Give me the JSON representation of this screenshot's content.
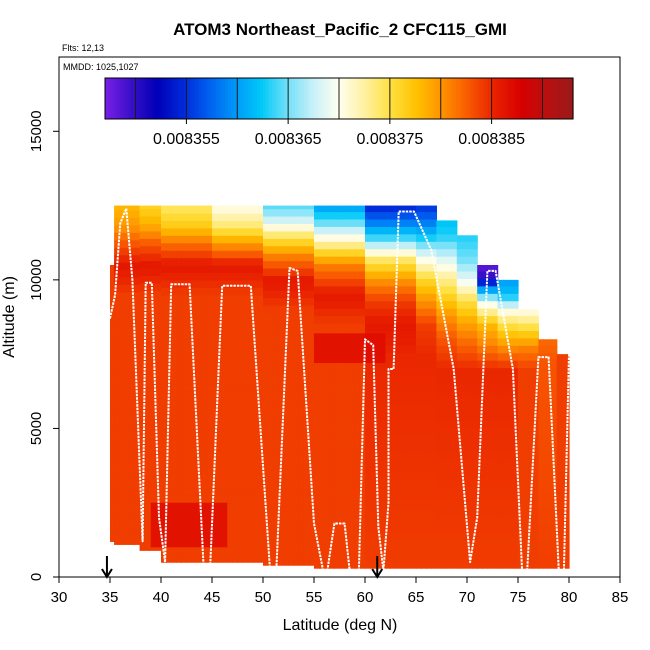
{
  "chart_data": {
    "type": "heatmap",
    "title": "ATOM3 Northeast_Pacific_2 CFC115_GMI",
    "flights_label": "Flts: 12,13",
    "dates_label": "MMDD: 1025,1027",
    "xlabel": "Latitude (deg N)",
    "ylabel": "Altitude (m)",
    "xlim": [
      30,
      85
    ],
    "ylim": [
      0,
      17500
    ],
    "x_ticks": [
      30,
      35,
      40,
      45,
      50,
      55,
      60,
      65,
      70,
      75,
      80,
      85
    ],
    "x_tick_labels": [
      "30",
      "35",
      "40",
      "45",
      "50",
      "55",
      "60",
      "65",
      "70",
      "75",
      "80",
      "85"
    ],
    "y_ticks": [
      0,
      5000,
      10000,
      15000
    ],
    "y_tick_labels": [
      "0",
      "5000",
      "10000",
      "15000"
    ],
    "colorbar": {
      "range": [
        0.008347,
        0.008393
      ],
      "ticks": [
        0.008355,
        0.008365,
        0.008375,
        0.008385
      ],
      "tick_labels": [
        "0.008355",
        "0.008365",
        "0.008375",
        "0.008385"
      ],
      "colors": [
        "#7a1fe6",
        "#3a10c8",
        "#0000b8",
        "#0028d8",
        "#0060f0",
        "#0098f8",
        "#00c8f8",
        "#70e0f8",
        "#c8f0f8",
        "#fffff0",
        "#fff0a0",
        "#ffe040",
        "#ffc000",
        "#ff9000",
        "#f85800",
        "#e82000",
        "#d80000",
        "#b81010",
        "#9a1a1a"
      ]
    },
    "arrows_at_latitude": [
      34.7,
      61.2
    ],
    "columns": [
      {
        "lat_start": 35.0,
        "lat_end": 35.4,
        "alt_min": 1200,
        "alt_max": 10500,
        "profile": [
          [
            0,
            0.008384
          ],
          [
            10500,
            0.008384
          ]
        ]
      },
      {
        "lat_start": 35.4,
        "lat_end": 37.9,
        "alt_min": 1100,
        "alt_max": 12500,
        "profile": [
          [
            0,
            0.008384
          ],
          [
            9500,
            0.008384
          ],
          [
            10500,
            0.008386
          ],
          [
            11200,
            0.008383
          ],
          [
            11800,
            0.00838
          ],
          [
            12500,
            0.008378
          ]
        ]
      },
      {
        "lat_start": 37.9,
        "lat_end": 40.0,
        "alt_min": 900,
        "alt_max": 12500,
        "profile": [
          [
            0,
            0.008384
          ],
          [
            9500,
            0.008384
          ],
          [
            10500,
            0.008386
          ],
          [
            11200,
            0.008383
          ],
          [
            11800,
            0.008379
          ],
          [
            12500,
            0.008376
          ]
        ]
      },
      {
        "lat_start": 40.0,
        "lat_end": 45.0,
        "alt_min": 500,
        "alt_max": 12500,
        "profile": [
          [
            0,
            0.008384
          ],
          [
            9500,
            0.008384
          ],
          [
            10500,
            0.008386
          ],
          [
            11200,
            0.008382
          ],
          [
            11800,
            0.008377
          ],
          [
            12500,
            0.008374
          ]
        ]
      },
      {
        "lat_start": 45.0,
        "lat_end": 50.0,
        "alt_min": 500,
        "alt_max": 12500,
        "profile": [
          [
            0,
            0.008384
          ],
          [
            9500,
            0.008384
          ],
          [
            10500,
            0.008386
          ],
          [
            11200,
            0.00838
          ],
          [
            11800,
            0.008374
          ],
          [
            12500,
            0.00837
          ]
        ]
      },
      {
        "lat_start": 50.0,
        "lat_end": 55.0,
        "alt_min": 400,
        "alt_max": 12500,
        "profile": [
          [
            0,
            0.008384
          ],
          [
            9000,
            0.008384
          ],
          [
            10000,
            0.008386
          ],
          [
            10800,
            0.008381
          ],
          [
            11500,
            0.008374
          ],
          [
            12000,
            0.008368
          ],
          [
            12500,
            0.008364
          ]
        ]
      },
      {
        "lat_start": 55.0,
        "lat_end": 60.0,
        "alt_min": 300,
        "alt_max": 12500,
        "profile": [
          [
            0,
            0.008384
          ],
          [
            8500,
            0.008384
          ],
          [
            9500,
            0.008386
          ],
          [
            10500,
            0.008381
          ],
          [
            11200,
            0.008373
          ],
          [
            11900,
            0.008365
          ],
          [
            12500,
            0.00836
          ]
        ]
      },
      {
        "lat_start": 60.0,
        "lat_end": 65.0,
        "alt_min": 300,
        "alt_max": 12500,
        "profile": [
          [
            0,
            0.008384
          ],
          [
            7500,
            0.008385
          ],
          [
            8500,
            0.008386
          ],
          [
            9300,
            0.008384
          ],
          [
            10000,
            0.00838
          ],
          [
            10700,
            0.008374
          ],
          [
            11400,
            0.008364
          ],
          [
            12000,
            0.008358
          ],
          [
            12500,
            0.008354
          ]
        ]
      },
      {
        "lat_start": 65.0,
        "lat_end": 67.0,
        "alt_min": 300,
        "alt_max": 12500,
        "profile": [
          [
            0,
            0.008384
          ],
          [
            7500,
            0.008385
          ],
          [
            8500,
            0.008384
          ],
          [
            9300,
            0.00838
          ],
          [
            10000,
            0.008376
          ],
          [
            10700,
            0.00837
          ],
          [
            11400,
            0.008363
          ],
          [
            12000,
            0.008358
          ],
          [
            12500,
            0.008355
          ]
        ]
      },
      {
        "lat_start": 67.0,
        "lat_end": 69.0,
        "alt_min": 300,
        "alt_max": 12000,
        "profile": [
          [
            0,
            0.008384
          ],
          [
            7000,
            0.008385
          ],
          [
            8000,
            0.008383
          ],
          [
            8800,
            0.00838
          ],
          [
            9500,
            0.008376
          ],
          [
            10200,
            0.008372
          ],
          [
            10900,
            0.008367
          ],
          [
            11500,
            0.008363
          ],
          [
            12000,
            0.008362
          ]
        ]
      },
      {
        "lat_start": 69.0,
        "lat_end": 71.0,
        "alt_min": 300,
        "alt_max": 11500,
        "profile": [
          [
            0,
            0.008384
          ],
          [
            7000,
            0.008385
          ],
          [
            7900,
            0.008382
          ],
          [
            8600,
            0.008379
          ],
          [
            9300,
            0.008375
          ],
          [
            10000,
            0.008369
          ],
          [
            10700,
            0.008365
          ],
          [
            11500,
            0.008363
          ]
        ]
      },
      {
        "lat_start": 71.0,
        "lat_end": 73.0,
        "alt_min": 300,
        "alt_max": 10500,
        "profile": [
          [
            0,
            0.008384
          ],
          [
            7000,
            0.008385
          ],
          [
            7800,
            0.008381
          ],
          [
            8500,
            0.008378
          ],
          [
            9200,
            0.00837
          ],
          [
            9700,
            0.00836
          ],
          [
            10100,
            0.00835
          ],
          [
            10500,
            0.008348
          ]
        ]
      },
      {
        "lat_start": 73.0,
        "lat_end": 75.0,
        "alt_min": 300,
        "alt_max": 10000,
        "profile": [
          [
            0,
            0.008384
          ],
          [
            7000,
            0.008385
          ],
          [
            7800,
            0.00838
          ],
          [
            8500,
            0.008375
          ],
          [
            9000,
            0.00837
          ],
          [
            9500,
            0.008362
          ],
          [
            10000,
            0.00836
          ]
        ]
      },
      {
        "lat_start": 75.0,
        "lat_end": 77.0,
        "alt_min": 300,
        "alt_max": 9000,
        "profile": [
          [
            0,
            0.008384
          ],
          [
            7000,
            0.008384
          ],
          [
            7700,
            0.008381
          ],
          [
            8300,
            0.008376
          ],
          [
            9000,
            0.00837
          ]
        ]
      },
      {
        "lat_start": 77.0,
        "lat_end": 78.8,
        "alt_min": 300,
        "alt_max": 8000,
        "profile": [
          [
            0,
            0.008384
          ],
          [
            7200,
            0.008383
          ],
          [
            8000,
            0.008382
          ]
        ]
      },
      {
        "lat_start": 78.8,
        "lat_end": 80.0,
        "alt_min": 300,
        "alt_max": 7500,
        "profile": [
          [
            0,
            0.008384
          ],
          [
            7500,
            0.008384
          ]
        ]
      }
    ],
    "patches": [
      {
        "lat_start": 39.0,
        "lat_end": 46.5,
        "alt_min": 1000,
        "alt_max": 2500,
        "value": 0.008387
      },
      {
        "lat_start": 55.0,
        "lat_end": 62.0,
        "alt_min": 7200,
        "alt_max": 8200,
        "value": 0.008387
      }
    ],
    "flight_track": [
      [
        35.0,
        8700
      ],
      [
        35.5,
        9500
      ],
      [
        36.0,
        11900
      ],
      [
        36.6,
        12400
      ],
      [
        37.2,
        10000
      ],
      [
        38.2,
        1200
      ],
      [
        38.5,
        9900
      ],
      [
        39.1,
        9900
      ],
      [
        39.8,
        2000
      ],
      [
        40.4,
        500
      ],
      [
        41.0,
        9850
      ],
      [
        42.8,
        9850
      ],
      [
        44.2,
        200
      ],
      [
        44.8,
        200
      ],
      [
        46.0,
        9800
      ],
      [
        48.8,
        9800
      ],
      [
        50.7,
        200
      ],
      [
        51.3,
        200
      ],
      [
        52.6,
        10400
      ],
      [
        53.4,
        10300
      ],
      [
        55.0,
        1800
      ],
      [
        55.9,
        200
      ],
      [
        56.3,
        200
      ],
      [
        57.0,
        1800
      ],
      [
        58.0,
        1800
      ],
      [
        58.5,
        200
      ],
      [
        59.4,
        200
      ],
      [
        60.0,
        8000
      ],
      [
        60.8,
        7800
      ],
      [
        61.3,
        1700
      ],
      [
        61.8,
        200
      ],
      [
        62.3,
        2500
      ],
      [
        62.3,
        7000
      ],
      [
        62.8,
        7000
      ],
      [
        63.3,
        12300
      ],
      [
        64.8,
        12300
      ],
      [
        66.5,
        11000
      ],
      [
        68.7,
        7000
      ],
      [
        70.3,
        500
      ],
      [
        71.0,
        2000
      ],
      [
        72.0,
        10300
      ],
      [
        72.8,
        10300
      ],
      [
        74.5,
        7000
      ],
      [
        75.4,
        200
      ],
      [
        75.9,
        200
      ],
      [
        77.0,
        7400
      ],
      [
        78.0,
        7400
      ],
      [
        79.0,
        200
      ],
      [
        79.5,
        200
      ],
      [
        80.0,
        7500
      ]
    ]
  }
}
